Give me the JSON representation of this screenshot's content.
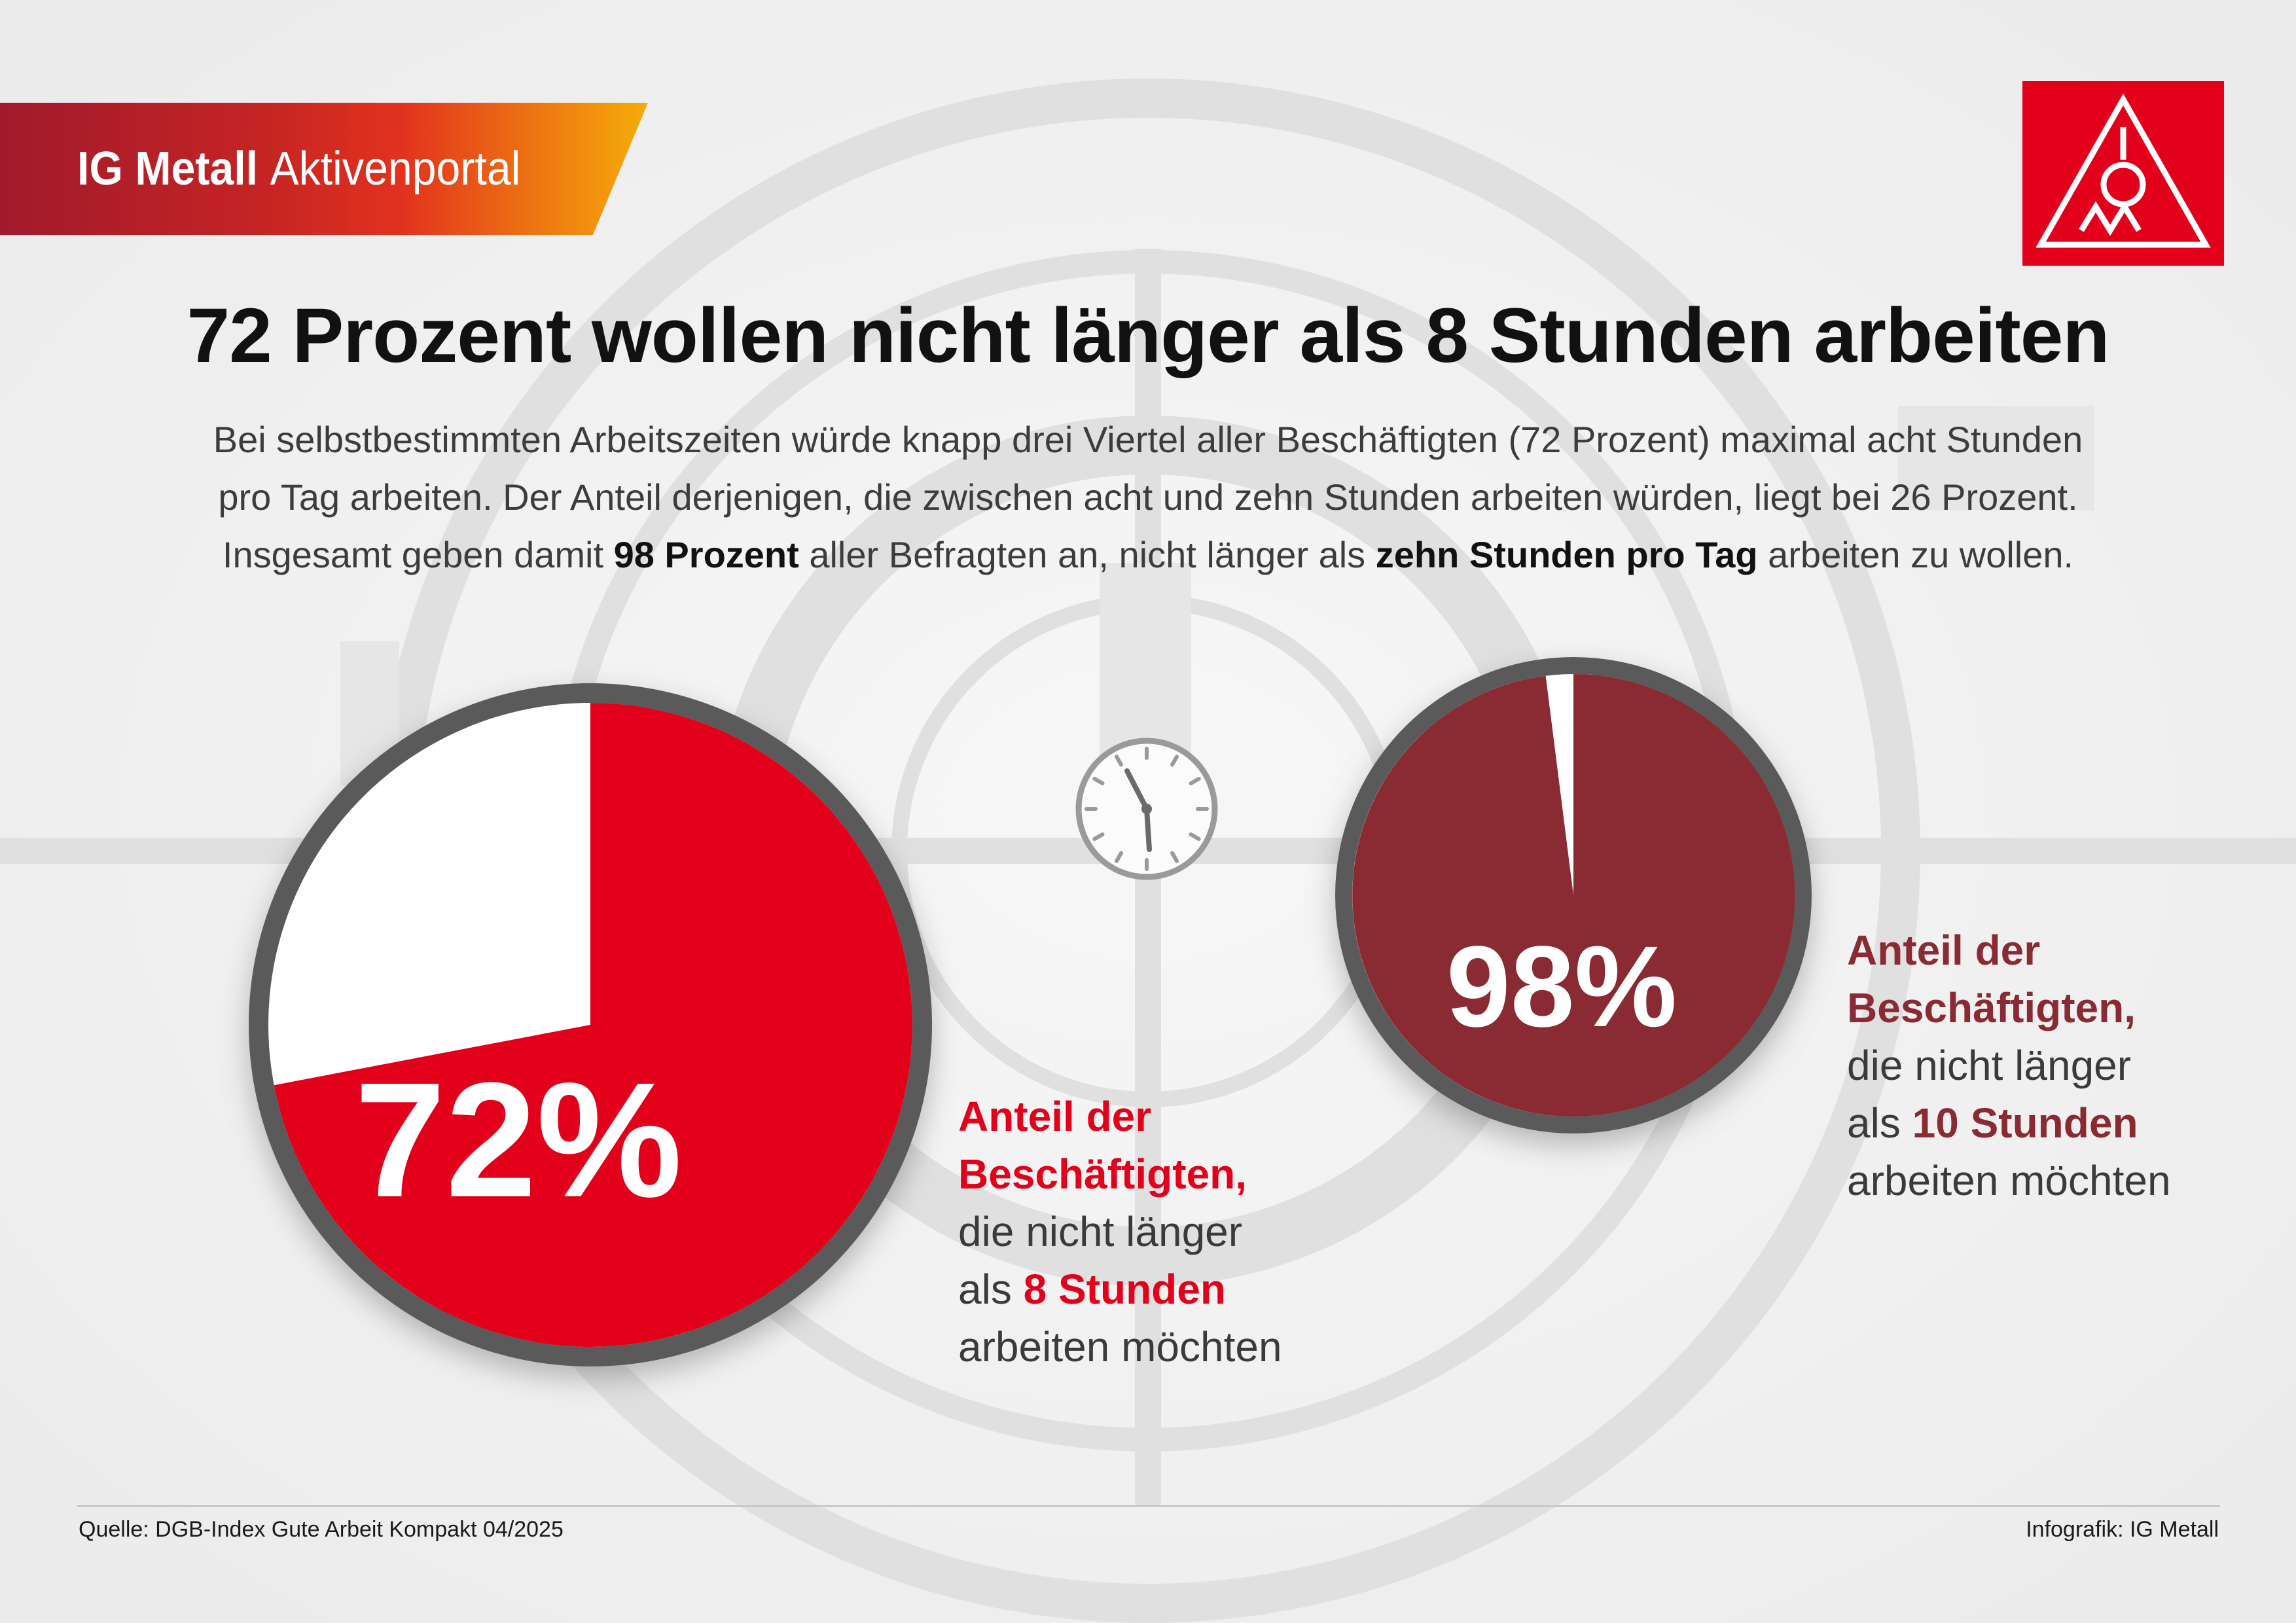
{
  "header": {
    "brand_bold": "IG Metall",
    "brand_light": "Aktivenportal"
  },
  "logo": {
    "icon": "ig-metall-logo-icon"
  },
  "title": "72 Prozent wollen nicht länger als 8 Stunden arbeiten",
  "lead": {
    "line1": "Bei selbstbestimmten Arbeitszeiten würde knapp drei Viertel aller Beschäftigten (72 Prozent) maximal acht Stunden",
    "line2": "pro Tag arbeiten. Der Anteil derjenigen, die zwischen acht und zehn Stunden arbeiten würden, liegt bei 26 Prozent.",
    "line3_a": "Insgesamt geben damit ",
    "line3_b": "98 Prozent",
    "line3_c": " aller Befragten an, nicht länger als ",
    "line3_d": "zehn Stunden pro Tag",
    "line3_e": " arbeiten zu wollen."
  },
  "chart_data": [
    {
      "type": "pie",
      "label": "72%",
      "slices": [
        {
          "value": 72,
          "color": "#e2001a"
        },
        {
          "value": 28,
          "color": "#ffffff"
        }
      ],
      "caption": {
        "line1": "Anteil der",
        "line2": "Beschäftigten,",
        "line3": "die nicht länger",
        "line4_a": "als ",
        "line4_b": "8 Stunden",
        "line5": "arbeiten möchten"
      }
    },
    {
      "type": "pie",
      "label": "98%",
      "slices": [
        {
          "value": 98,
          "color": "#8a2a33"
        },
        {
          "value": 2,
          "color": "#ffffff"
        }
      ],
      "caption": {
        "line1": "Anteil der",
        "line2": "Beschäftigten,",
        "line3": "die nicht länger",
        "line4_a": "als ",
        "line4_b": "10 Stunden",
        "line5": "arbeiten möchten"
      }
    }
  ],
  "clock_icon": "clock-icon",
  "footer": {
    "source": "Quelle: DGB-Index Gute Arbeit Kompakt 04/2025",
    "credit": "Infografik: IG Metall"
  },
  "colors": {
    "accent_red": "#e2001a",
    "accent_dark_red": "#8a2a33",
    "ring_gray": "#5a5a5a"
  }
}
